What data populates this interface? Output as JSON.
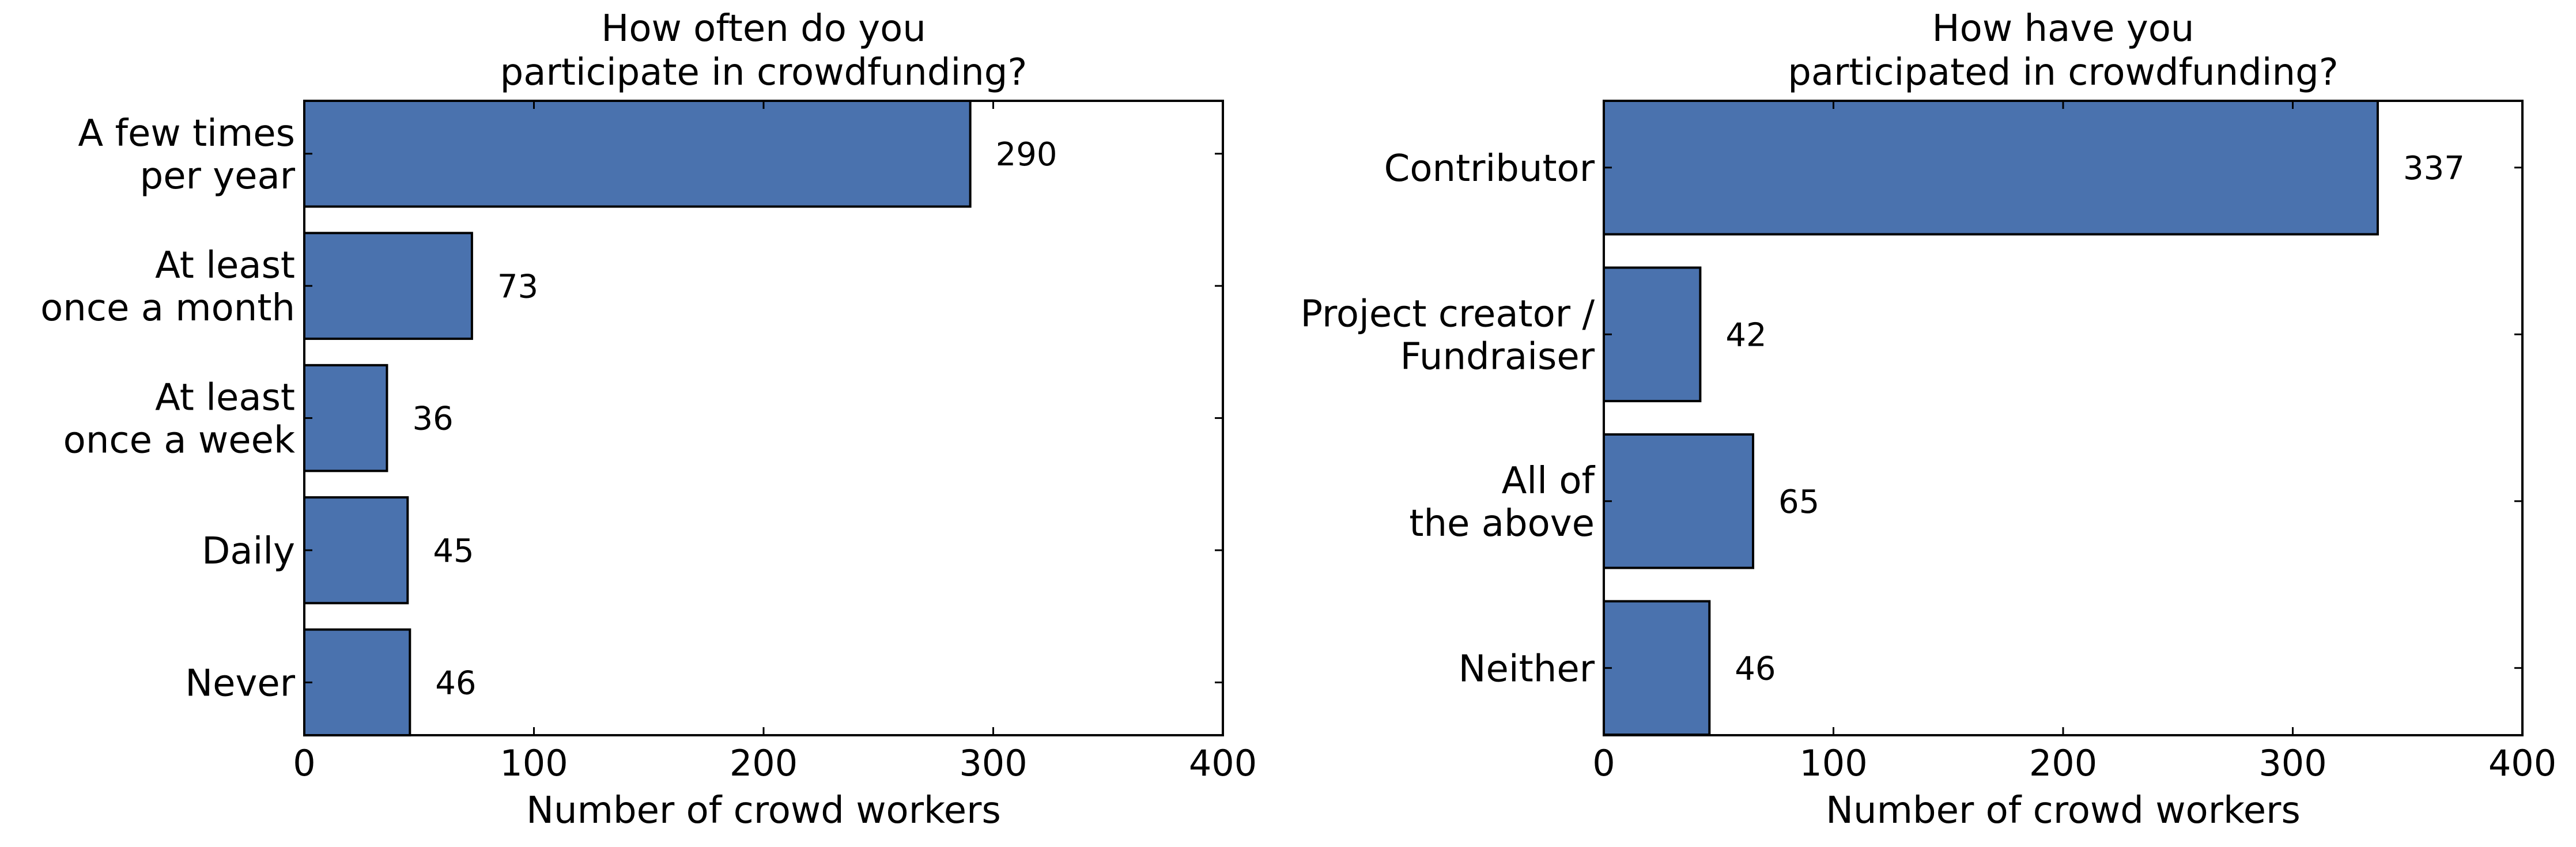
{
  "chart_data": [
    {
      "type": "bar",
      "orientation": "horizontal",
      "title": "How often do you\nparticipate in crowdfunding?",
      "xlabel": "Number of crowd workers",
      "ylabel": "",
      "xlim": [
        0,
        400
      ],
      "xticks": [
        "0",
        "100",
        "200",
        "300",
        "400"
      ],
      "categories": [
        "A few times\nper year",
        "At least\nonce a month",
        "At least\nonce a week",
        "Daily",
        "Never"
      ],
      "values": [
        290,
        73,
        36,
        45,
        46
      ],
      "data_labels": [
        "290",
        "73",
        "36",
        "45",
        "46"
      ],
      "grid": false,
      "bar_color": "#4a72ae"
    },
    {
      "type": "bar",
      "orientation": "horizontal",
      "title": "How have you\nparticipated in crowdfunding?",
      "xlabel": "Number of crowd workers",
      "ylabel": "",
      "xlim": [
        0,
        400
      ],
      "xticks": [
        "0",
        "100",
        "200",
        "300",
        "400"
      ],
      "categories": [
        "Contributor",
        "Project creator /\nFundraiser",
        "All of\nthe above",
        "Neither"
      ],
      "values": [
        337,
        42,
        65,
        46
      ],
      "data_labels": [
        "337",
        "42",
        "65",
        "46"
      ],
      "grid": false,
      "bar_color": "#4a72ae"
    }
  ]
}
